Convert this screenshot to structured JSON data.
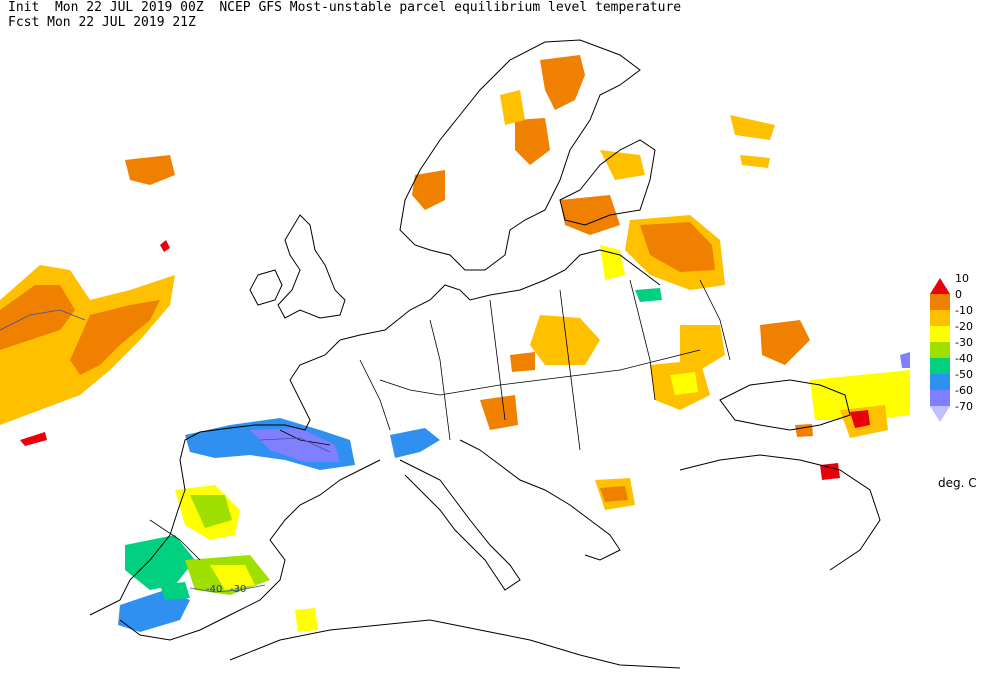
{
  "header": {
    "line1": "Init  Mon 22 JUL 2019 00Z  NCEP GFS Most-unstable parcel equilibrium level temperature",
    "line2": "Fcst Mon 22 JUL 2019 21Z"
  },
  "legend": {
    "units": "deg. C",
    "levels": [
      {
        "label": "10",
        "color": "#e8000b"
      },
      {
        "label": "0",
        "color": "#f08000"
      },
      {
        "label": "-10",
        "color": "#ffc000"
      },
      {
        "label": "-20",
        "color": "#ffff00"
      },
      {
        "label": "-30",
        "color": "#a0e000"
      },
      {
        "label": "-40",
        "color": "#00d080"
      },
      {
        "label": "-50",
        "color": "#3090f0"
      },
      {
        "label": "-60",
        "color": "#8080ff"
      },
      {
        "label": "-70",
        "color": "#c0c0ff"
      }
    ]
  },
  "contour_labels": {
    "c1": "-40",
    "c2": "-30"
  }
}
